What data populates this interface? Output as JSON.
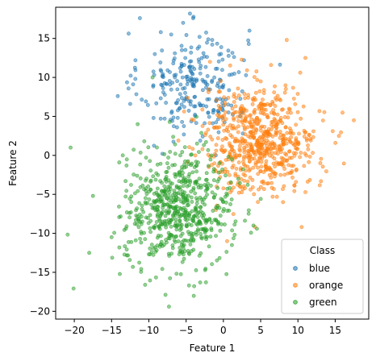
{
  "chart_data": {
    "type": "scatter",
    "title": "",
    "xlabel": "Feature 1",
    "ylabel": "Feature 2",
    "xlim": [
      -22.5,
      19.5
    ],
    "ylim": [
      -21,
      19
    ],
    "xticks": [
      -20,
      -15,
      -10,
      -5,
      0,
      5,
      10,
      15
    ],
    "yticks": [
      -20,
      -15,
      -10,
      -5,
      0,
      5,
      10,
      15
    ],
    "grid": false,
    "legend": {
      "title": "Class",
      "placement": "lower-right"
    },
    "series": [
      {
        "name": "blue",
        "color": "#1f77b4",
        "center": [
          -4,
          9
        ],
        "spread": [
          3.6,
          3.4
        ],
        "count": 250,
        "points": [
          [
            -11.2,
            17.6
          ],
          [
            -5.4,
            17.0
          ],
          [
            3.5,
            16.0
          ],
          [
            -3.2,
            15.2
          ],
          [
            -1.5,
            14.8
          ],
          [
            -11.8,
            12.2
          ],
          [
            -12.5,
            6.6
          ],
          [
            -8.4,
            15.8
          ],
          [
            -7.0,
            15.5
          ],
          [
            0.0,
            9.0
          ]
        ]
      },
      {
        "name": "orange",
        "color": "#ff7f0e",
        "center": [
          5,
          2
        ],
        "spread": [
          3.8,
          3.4
        ],
        "count": 650,
        "points": [
          [
            17.5,
            4.5
          ],
          [
            11.0,
            12.5
          ],
          [
            8.5,
            14.8
          ],
          [
            10.5,
            -9.2
          ],
          [
            0.5,
            -11.0
          ],
          [
            -1.8,
            12.0
          ],
          [
            13.0,
            -1.0
          ],
          [
            15.5,
            2.5
          ],
          [
            -1.0,
            -7.0
          ],
          [
            8.0,
            -6.0
          ]
        ]
      },
      {
        "name": "green",
        "color": "#2ca02c",
        "center": [
          -6,
          -7
        ],
        "spread": [
          3.6,
          3.6
        ],
        "count": 650,
        "points": [
          [
            -20.5,
            1.0
          ],
          [
            -7.3,
            -19.4
          ],
          [
            -17.5,
            -5.2
          ],
          [
            -13.5,
            0.0
          ],
          [
            -10.5,
            -16.6
          ],
          [
            -9.5,
            10.0
          ],
          [
            -15.0,
            -10.5
          ],
          [
            -18.0,
            -12.5
          ],
          [
            -11.5,
            4.0
          ],
          [
            2.0,
            -3.0
          ]
        ]
      }
    ]
  }
}
